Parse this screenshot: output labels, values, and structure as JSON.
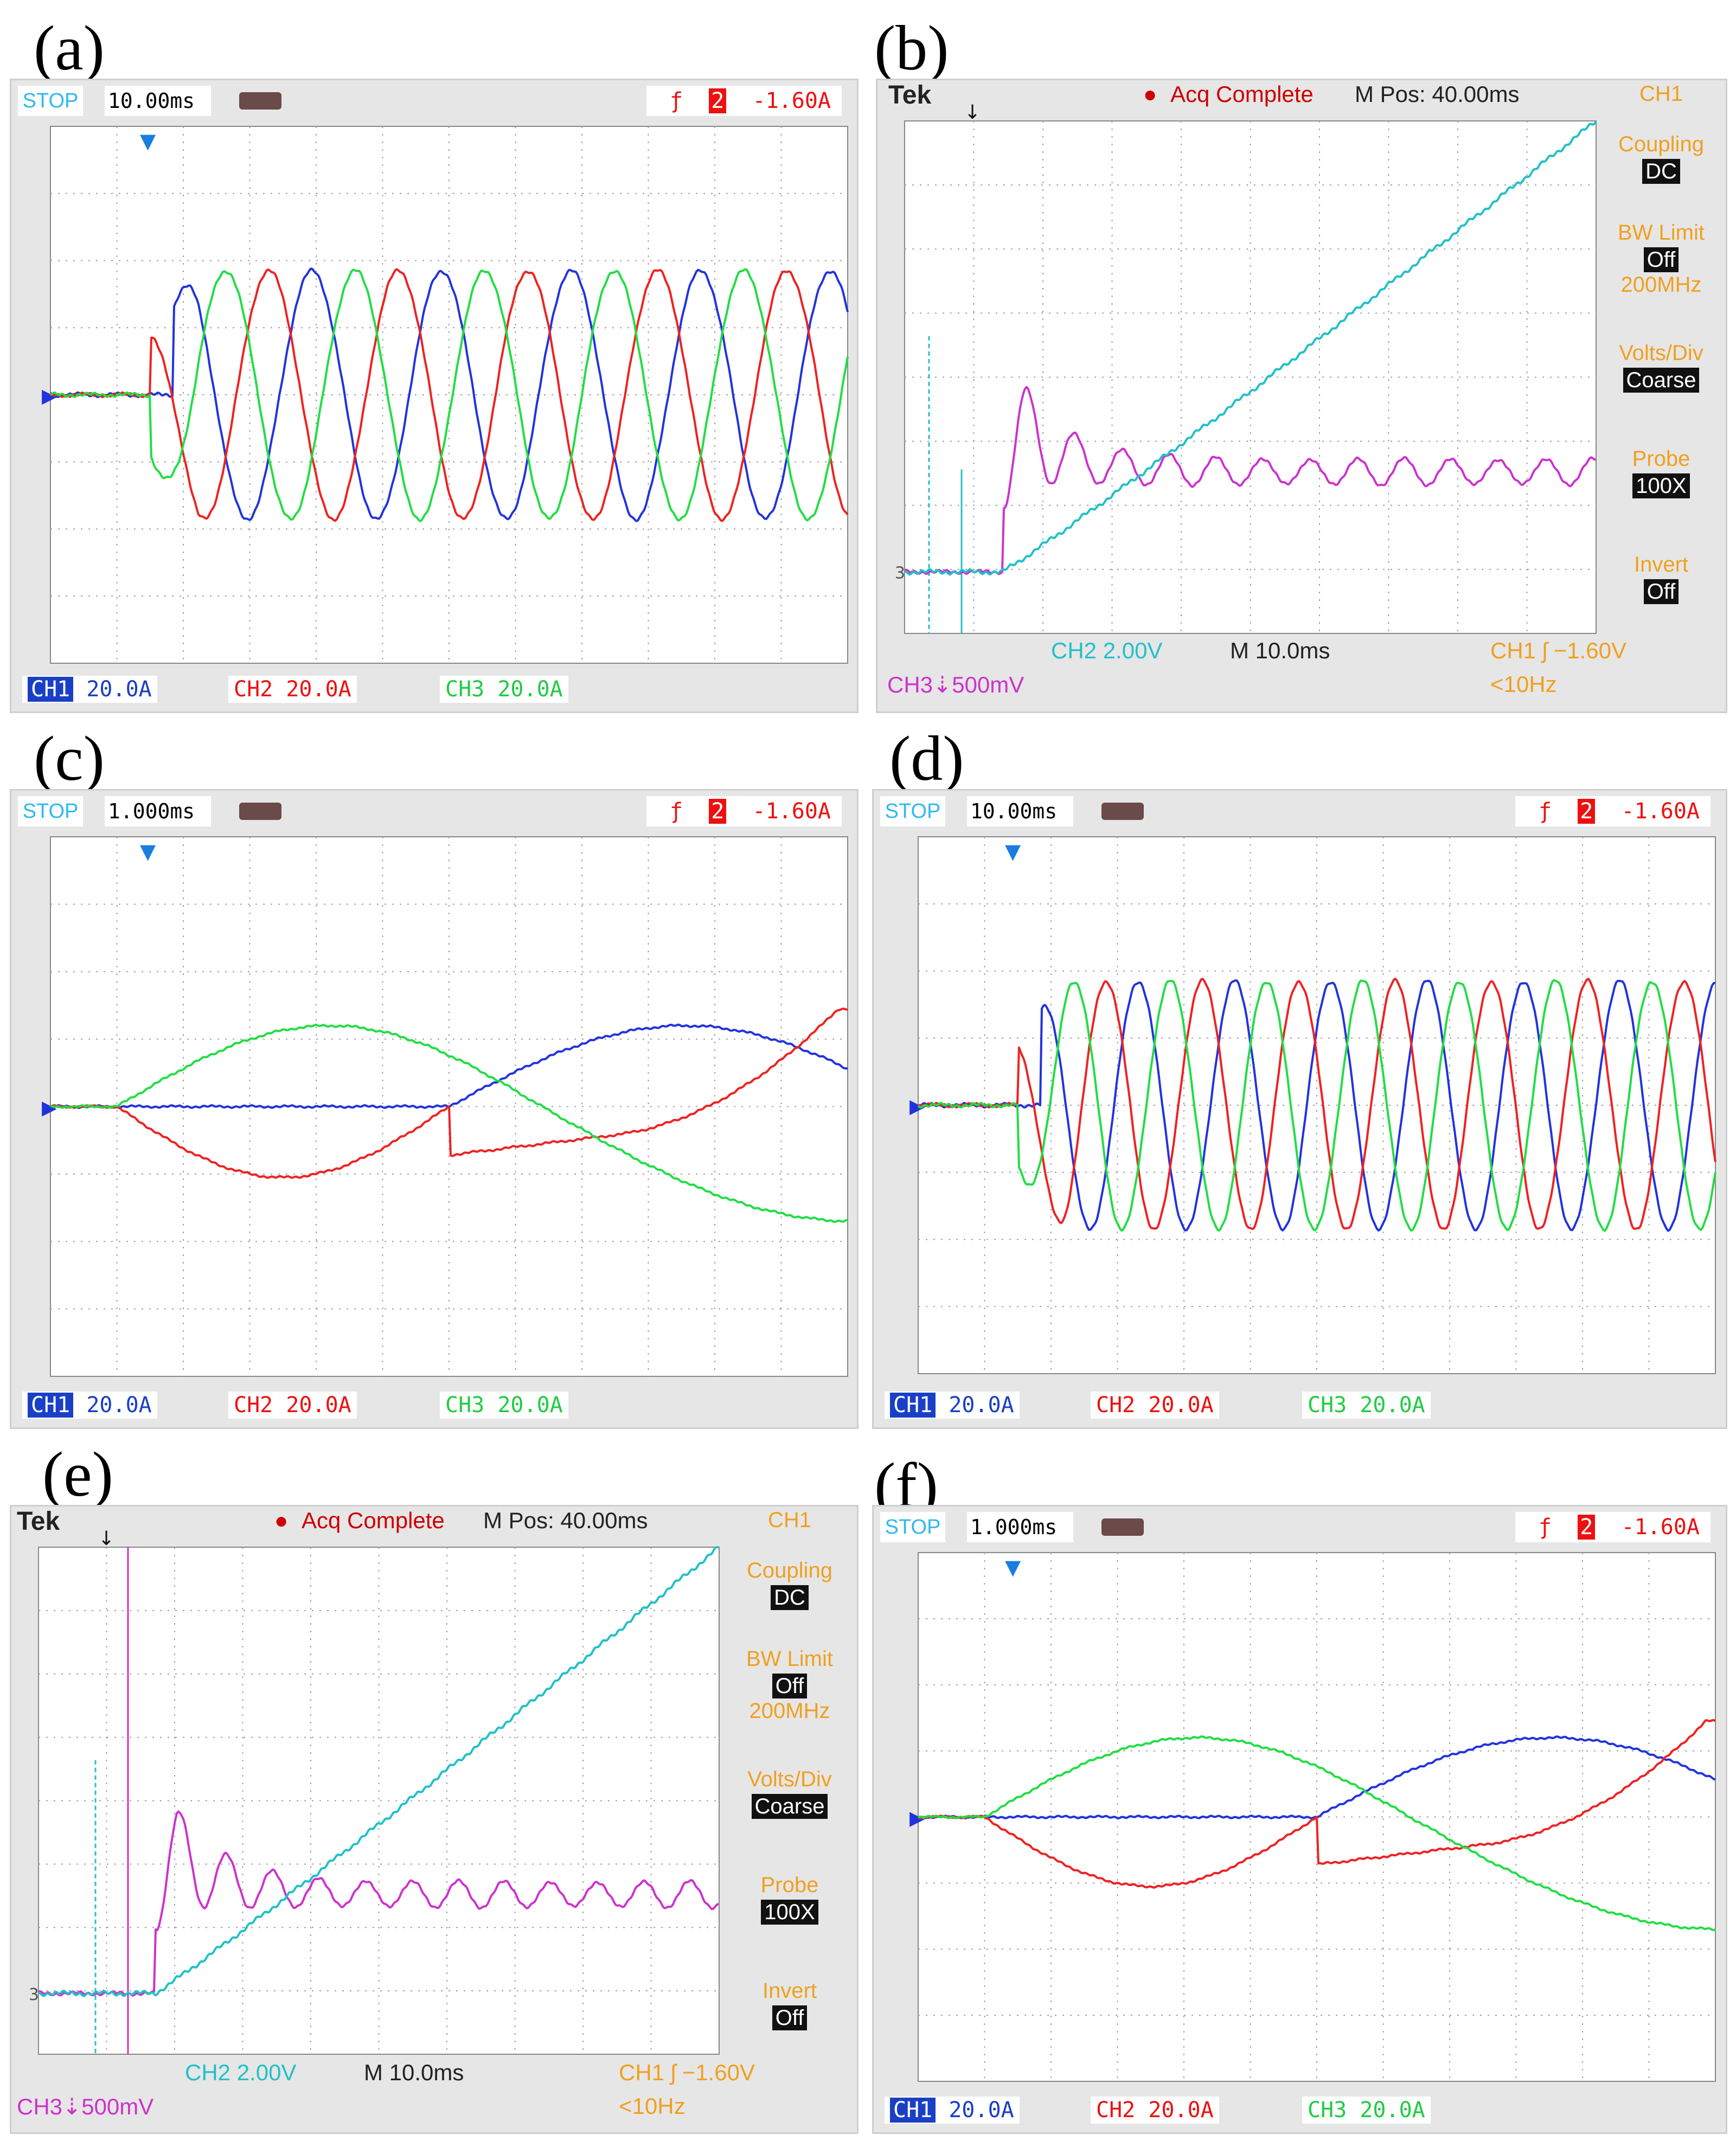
{
  "labels": {
    "a": "(a)",
    "b": "(b)",
    "c": "(c)",
    "d": "(d)",
    "e": "(e)",
    "f": "(f)"
  },
  "rigol": {
    "stop": "STOP",
    "trigger_value": "-1.60A",
    "ch1": "CH1",
    "ch1_scale": "20.0A",
    "ch2": "CH2",
    "ch2_scale": "20.0A",
    "ch3": "CH3",
    "ch3_scale": "20.0A",
    "coupling_symbol": "⎓"
  },
  "tek": {
    "brand": "Tek",
    "acq": "Acq Complete",
    "mpos": "M Pos: 40.00ms",
    "ch_title": "CH1",
    "coupling_label": "Coupling",
    "coupling_value": "DC",
    "bw_label": "BW Limit",
    "bw_value": "Off",
    "bw_freq": "200MHz",
    "vdiv_label": "Volts/Div",
    "vdiv_value": "Coarse",
    "probe_label": "Probe",
    "probe_value": "100X",
    "invert_label": "Invert",
    "invert_value": "Off",
    "ch2_readout": "CH2  2.00V",
    "timebase": "M 10.0ms",
    "ch1_trig": "CH1 ʃ −1.60V",
    "freq": "<10Hz",
    "ch3_readout": "CH3⇣500mV"
  },
  "colors": {
    "phase_a": "#2233dd",
    "phase_b": "#ee2222",
    "phase_c": "#22dd44",
    "speed": "#22c0c8",
    "torque": "#cc33cc",
    "grid": "#a0a0a0",
    "plot_bg": "#ffffff",
    "marker": "#1a7ee0"
  },
  "chart_data": [
    {
      "panel": "a",
      "type": "line",
      "timebase": "10.00ms",
      "x_divisions": 12,
      "y_divisions": 8,
      "series": [
        {
          "name": "CH1",
          "color": "phase_a",
          "start_div": 1.5,
          "period_div": 1.95,
          "amplitude_div": 1.85,
          "phase_deg": 0,
          "transient": true
        },
        {
          "name": "CH2",
          "color": "phase_b",
          "start_div": 1.5,
          "period_div": 1.95,
          "amplitude_div": 1.85,
          "phase_deg": 120,
          "transient": true
        },
        {
          "name": "CH3",
          "color": "phase_c",
          "start_div": 1.5,
          "period_div": 1.95,
          "amplitude_div": 1.85,
          "phase_deg": 240,
          "transient": true
        }
      ]
    },
    {
      "panel": "b",
      "type": "line",
      "timebase": "10.0ms",
      "x_divisions": 10,
      "y_divisions": 8,
      "series": [
        {
          "name": "CH2",
          "color": "speed",
          "profile": "ramp"
        },
        {
          "name": "CH3",
          "color": "torque",
          "profile": "oscillation"
        }
      ]
    },
    {
      "panel": "c",
      "type": "line",
      "timebase": "1.000ms",
      "x_divisions": 12,
      "y_divisions": 8,
      "series": [
        {
          "name": "CH1",
          "color": "phase_a"
        },
        {
          "name": "CH2",
          "color": "phase_b"
        },
        {
          "name": "CH3",
          "color": "phase_c"
        }
      ]
    },
    {
      "panel": "d",
      "type": "line",
      "timebase": "10.00ms",
      "x_divisions": 12,
      "y_divisions": 8,
      "series": [
        {
          "name": "CH1",
          "color": "phase_a",
          "start_div": 1.5,
          "period_div": 1.45,
          "amplitude_div": 1.85,
          "phase_deg": 0,
          "transient": true
        },
        {
          "name": "CH2",
          "color": "phase_b",
          "start_div": 1.5,
          "period_div": 1.45,
          "amplitude_div": 1.85,
          "phase_deg": 120,
          "transient": true
        },
        {
          "name": "CH3",
          "color": "phase_c",
          "start_div": 1.5,
          "period_div": 1.45,
          "amplitude_div": 1.85,
          "phase_deg": 240,
          "transient": true
        }
      ]
    },
    {
      "panel": "e",
      "type": "line",
      "timebase": "10.0ms",
      "x_divisions": 10,
      "y_divisions": 8,
      "series": [
        {
          "name": "CH2",
          "color": "speed",
          "profile": "ramp"
        },
        {
          "name": "CH3",
          "color": "torque",
          "profile": "oscillation"
        }
      ]
    },
    {
      "panel": "f",
      "type": "line",
      "timebase": "1.000ms",
      "x_divisions": 12,
      "y_divisions": 8,
      "series": [
        {
          "name": "CH1",
          "color": "phase_a"
        },
        {
          "name": "CH2",
          "color": "phase_b"
        },
        {
          "name": "CH3",
          "color": "phase_c"
        }
      ]
    }
  ]
}
